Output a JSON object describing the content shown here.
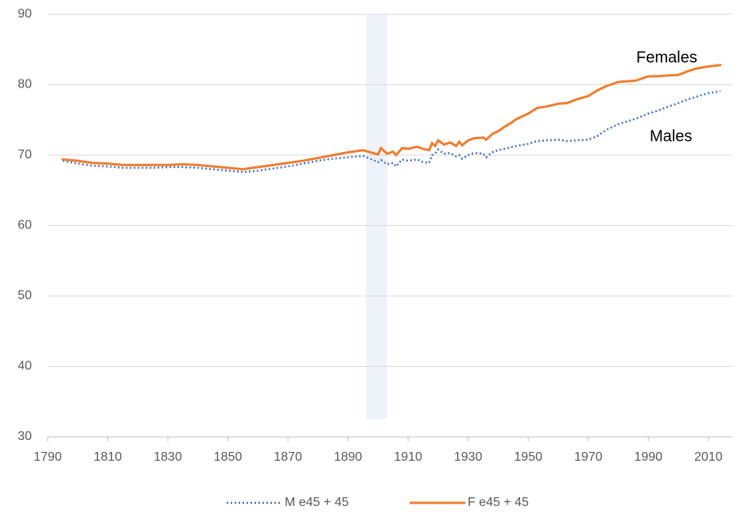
{
  "chart_data": {
    "type": "line",
    "x": [
      1795,
      1800,
      1805,
      1810,
      1815,
      1820,
      1825,
      1830,
      1835,
      1840,
      1845,
      1850,
      1855,
      1860,
      1865,
      1870,
      1875,
      1880,
      1885,
      1890,
      1895,
      1900,
      1901,
      1903,
      1905,
      1906,
      1908,
      1910,
      1913,
      1915,
      1917,
      1918,
      1919,
      1920,
      1922,
      1924,
      1926,
      1927,
      1928,
      1930,
      1932,
      1935,
      1936,
      1938,
      1940,
      1942,
      1944,
      1946,
      1950,
      1953,
      1956,
      1960,
      1963,
      1966,
      1970,
      1973,
      1976,
      1980,
      1983,
      1986,
      1990,
      1993,
      1996,
      2000,
      2003,
      2006,
      2010,
      2014
    ],
    "series": [
      {
        "name": "M e45 + 45",
        "color": "#4472c4",
        "dash": "dotted",
        "values": [
          69.2,
          68.8,
          68.5,
          68.4,
          68.2,
          68.2,
          68.2,
          68.3,
          68.3,
          68.2,
          68.0,
          67.8,
          67.6,
          67.8,
          68.1,
          68.4,
          68.8,
          69.2,
          69.5,
          69.7,
          69.9,
          69.0,
          69.3,
          68.7,
          68.9,
          68.4,
          69.4,
          69.2,
          69.4,
          69.0,
          68.9,
          70.0,
          70.2,
          70.8,
          70.2,
          70.3,
          69.8,
          70.0,
          69.5,
          70.0,
          70.3,
          70.2,
          69.7,
          70.4,
          70.7,
          70.9,
          71.1,
          71.3,
          71.6,
          72.0,
          72.1,
          72.2,
          72.0,
          72.1,
          72.2,
          72.7,
          73.6,
          74.4,
          74.8,
          75.2,
          75.9,
          76.3,
          76.8,
          77.4,
          77.9,
          78.3,
          78.8,
          79.1
        ]
      },
      {
        "name": "F e45 + 45",
        "color": "#ed7d31",
        "dash": "solid",
        "values": [
          69.4,
          69.2,
          68.9,
          68.8,
          68.6,
          68.6,
          68.6,
          68.6,
          68.7,
          68.6,
          68.4,
          68.2,
          68.0,
          68.3,
          68.6,
          68.9,
          69.2,
          69.6,
          70.0,
          70.4,
          70.7,
          70.1,
          71.0,
          70.2,
          70.5,
          70.0,
          71.0,
          70.9,
          71.2,
          70.9,
          70.7,
          71.7,
          71.3,
          72.1,
          71.5,
          71.8,
          71.3,
          71.9,
          71.4,
          72.1,
          72.4,
          72.5,
          72.2,
          73.0,
          73.4,
          74.0,
          74.5,
          75.1,
          75.9,
          76.7,
          76.9,
          77.3,
          77.4,
          77.9,
          78.4,
          79.2,
          79.8,
          80.4,
          80.5,
          80.6,
          81.2,
          81.2,
          81.3,
          81.4,
          81.9,
          82.3,
          82.6,
          82.8
        ]
      }
    ],
    "annotations": [
      "Females",
      "Males"
    ],
    "shade": {
      "xlim": [
        1896,
        1903
      ],
      "ylim": [
        32.5,
        90
      ],
      "color": "#eef2fb"
    },
    "xlim": [
      1790,
      2018
    ],
    "ylim": [
      30,
      90
    ],
    "xticks": [
      1790,
      1810,
      1830,
      1850,
      1870,
      1890,
      1910,
      1930,
      1950,
      1970,
      1990,
      2010
    ],
    "yticks": [
      30,
      40,
      50,
      60,
      70,
      80,
      90
    ],
    "grid": true,
    "legend": "bottom"
  }
}
